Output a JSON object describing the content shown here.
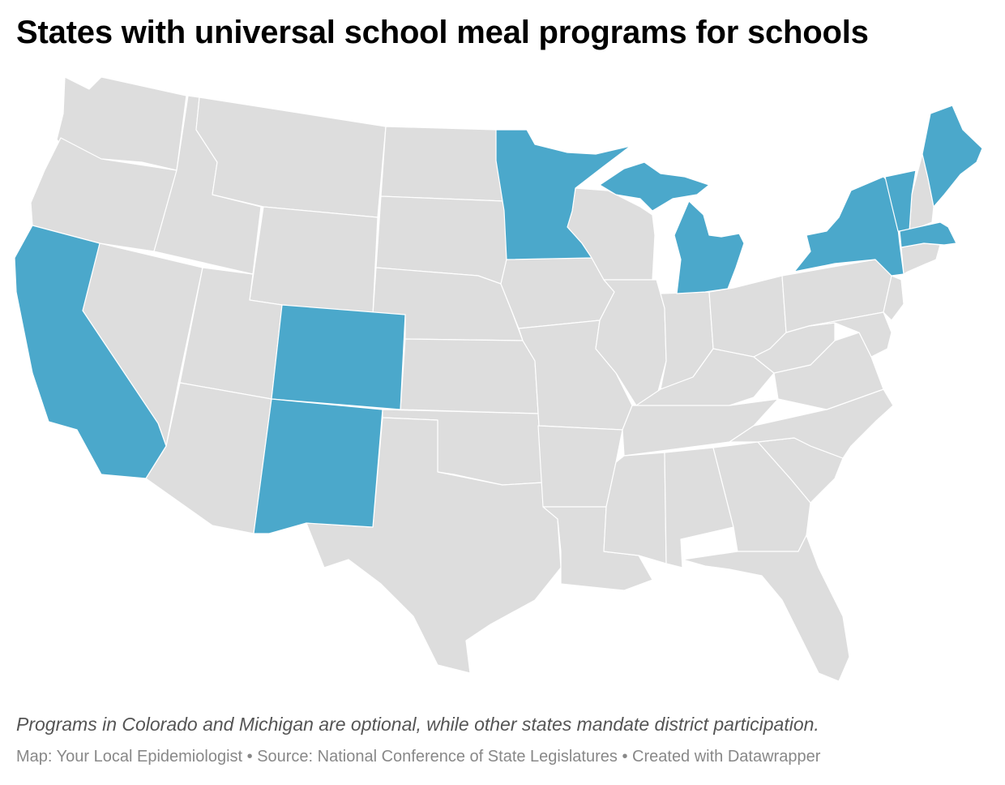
{
  "title": "States with universal school meal programs for schools",
  "notes": "Programs in Colorado and Michigan are optional, while other states mandate district participation.",
  "footer": {
    "byline": "Map: Your Local Epidemiologist",
    "source": "Source: National Conference of State Legislatures",
    "credit": "Created with Datawrapper",
    "separator": " • "
  },
  "colors": {
    "highlight": "#4ba8cb",
    "other": "#dddddd",
    "border": "#ffffff"
  },
  "map_data": {
    "type": "choropleth",
    "region": "United States (contiguous)",
    "highlighted_states": [
      "California",
      "Colorado",
      "New Mexico",
      "Minnesota",
      "Michigan",
      "New York",
      "Vermont",
      "Maine",
      "Massachusetts"
    ]
  }
}
